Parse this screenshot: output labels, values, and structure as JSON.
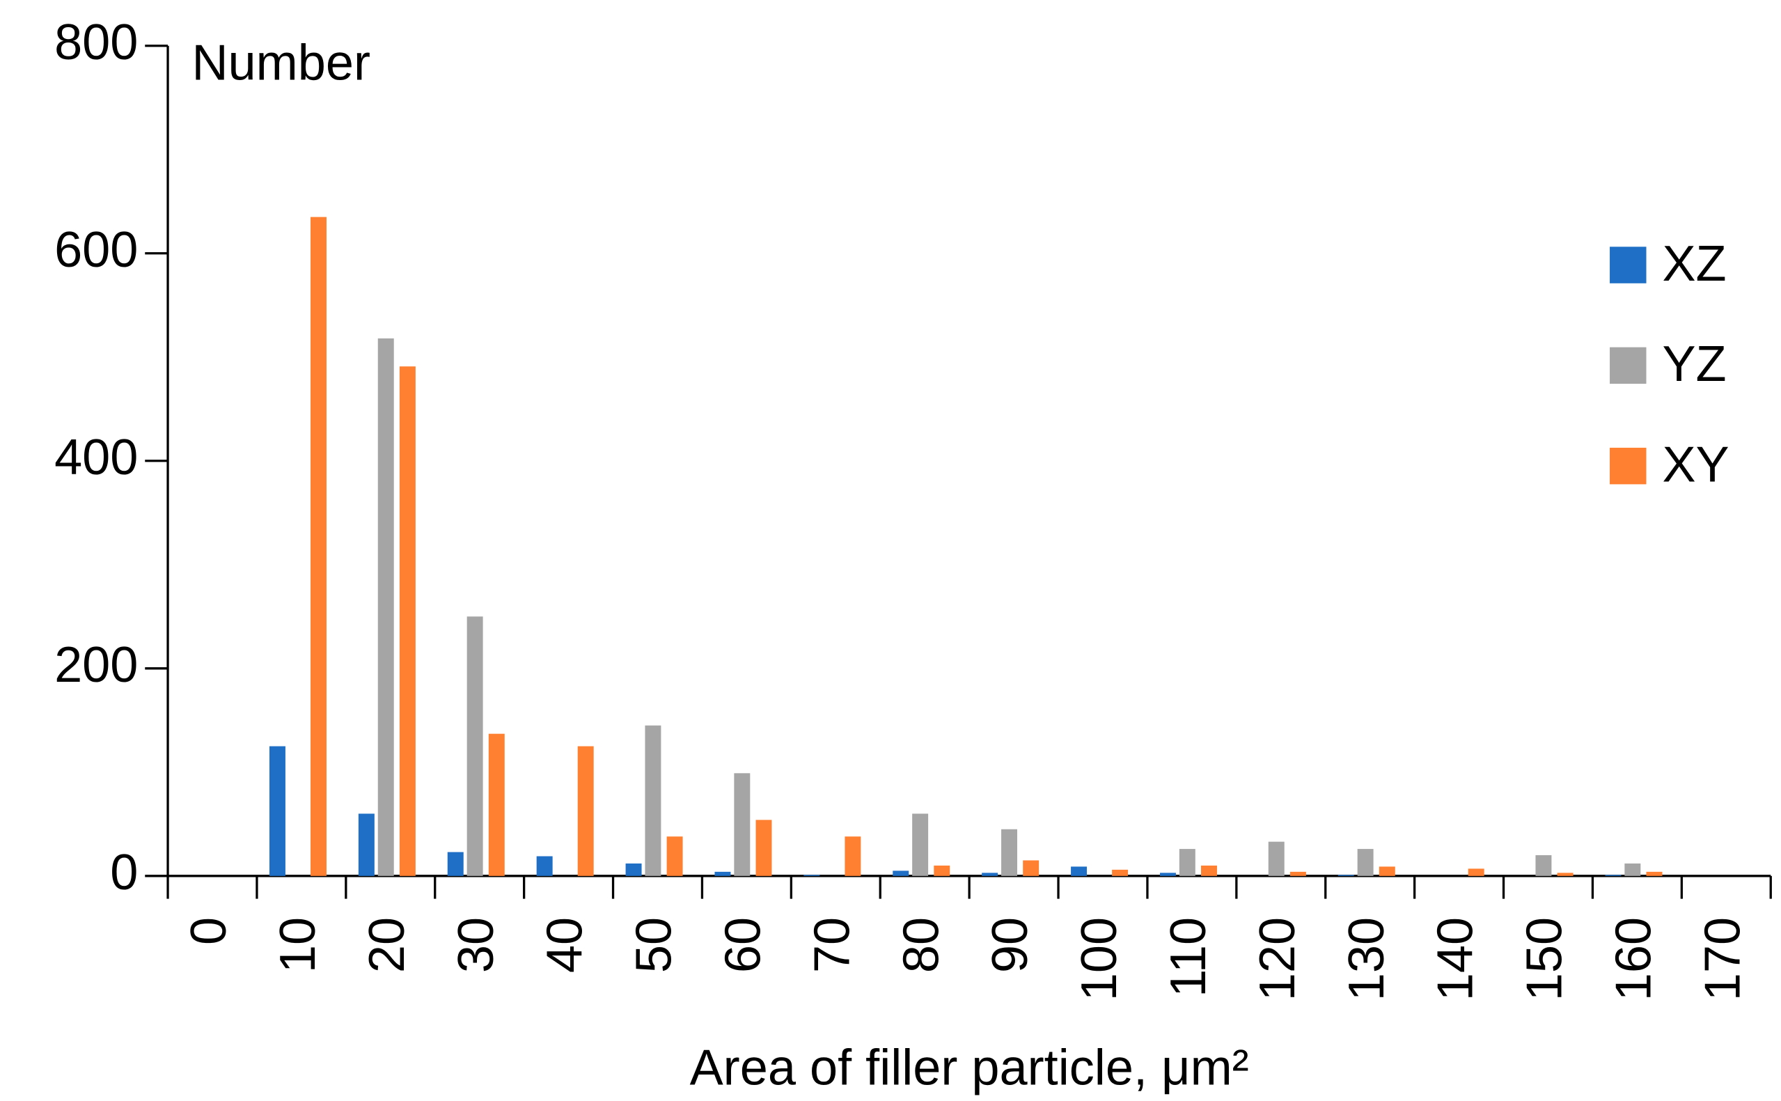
{
  "chart_data": {
    "type": "bar",
    "y_label": "Number",
    "x_label": "Area of filler particle, μm²",
    "categories": [
      "0",
      "10",
      "20",
      "30",
      "40",
      "50",
      "60",
      "70",
      "80",
      "90",
      "100",
      "110",
      "120",
      "130",
      "140",
      "150",
      "160",
      "170"
    ],
    "series": [
      {
        "name": "XZ",
        "color": "#1f6fc6",
        "values": [
          0,
          125,
          60,
          23,
          19,
          12,
          4,
          1,
          5,
          3,
          9,
          3,
          0,
          1,
          0,
          0,
          1,
          0
        ]
      },
      {
        "name": "YZ",
        "color": "#a5a5a5",
        "values": [
          0,
          0,
          518,
          250,
          0,
          145,
          99,
          0,
          60,
          45,
          0,
          26,
          33,
          26,
          0,
          20,
          12,
          0
        ]
      },
      {
        "name": "XY",
        "color": "#ff8030",
        "values": [
          0,
          635,
          491,
          137,
          125,
          38,
          54,
          38,
          10,
          15,
          6,
          10,
          4,
          9,
          7,
          3,
          4,
          0
        ]
      }
    ],
    "ylim": [
      0,
      800
    ],
    "yticks": [
      0,
      200,
      400,
      600,
      800
    ],
    "grid": false,
    "legend": "right"
  }
}
